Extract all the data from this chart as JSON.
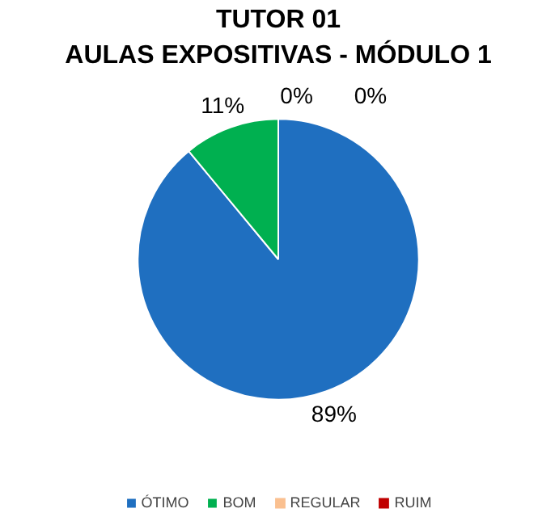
{
  "chart_data": {
    "type": "pie",
    "title": "TUTOR 01\nAULAS EXPOSITIVAS - MÓDULO 1",
    "categories": [
      "ÓTIMO",
      "BOM",
      "REGULAR",
      "RUIM"
    ],
    "values": [
      89,
      11,
      0,
      0
    ],
    "colors": [
      "#1f6fc0",
      "#00b050",
      "#fac090",
      "#c00000"
    ],
    "value_labels": [
      "89%",
      "11%",
      "0%",
      "0%"
    ],
    "legend": "bottom"
  }
}
